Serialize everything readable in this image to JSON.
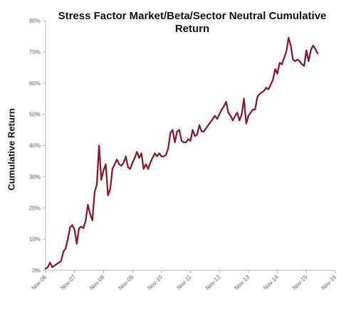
{
  "chart_data": {
    "type": "line",
    "title_lines": [
      "Stress Factor Market/Beta/Sector Neutral Cumulative",
      "Return"
    ],
    "ylabel": "Cumulative Return",
    "xlabel": "",
    "ylim": [
      0,
      80
    ],
    "yticks": [
      0,
      10,
      20,
      30,
      40,
      50,
      60,
      70,
      80
    ],
    "ytick_labels": [
      "0%",
      "10%",
      "20%",
      "30%",
      "40%",
      "50%",
      "60%",
      "70%",
      "80%"
    ],
    "xlim": [
      0,
      130
    ],
    "xticks": [
      0,
      13,
      26,
      39,
      52,
      65,
      78,
      91,
      104,
      117,
      130
    ],
    "xtick_labels": [
      "Nov-06",
      "Nov-07",
      "Nov-08",
      "Nov-09",
      "Nov-10",
      "Nov-11",
      "Nov-12",
      "Nov-13",
      "Nov-14",
      "Nov-15",
      "Nov-16"
    ],
    "grid": false,
    "legend": "none",
    "line_color": "#8B1A2B",
    "series": [
      {
        "values": [
          0.5,
          1.0,
          2.5,
          1.0,
          1.5,
          2.0,
          2.5,
          3.0,
          6.0,
          7.0,
          10.0,
          13.8,
          14.5,
          13.0,
          8.5,
          13.5,
          14.0,
          13.5,
          16.0,
          21.0,
          18.0,
          16.0,
          25.0,
          27.5,
          40.0,
          29.0,
          32.0,
          34.0,
          24.0,
          26.0,
          32.5,
          34.0,
          35.5,
          34.0,
          33.5,
          34.5,
          36.5,
          33.0,
          32.5,
          34.5,
          36.0,
          38.0,
          36.0,
          37.5,
          32.5,
          34.0,
          32.5,
          34.5,
          36.0,
          37.5,
          36.5,
          37.5,
          36.5,
          36.5,
          37.0,
          39.0,
          44.0,
          45.0,
          41.0,
          44.5,
          45.0,
          41.5,
          41.0,
          41.0,
          42.0,
          41.5,
          45.0,
          43.0,
          43.5,
          46.5,
          44.5,
          44.5,
          45.5,
          46.5,
          47.5,
          48.5,
          49.5,
          48.5,
          50.0,
          51.5,
          52.5,
          54.0,
          50.5,
          49.5,
          48.0,
          49.5,
          50.5,
          48.0,
          50.0,
          55.0,
          47.0,
          49.5,
          50.5,
          51.5,
          51.5,
          55.5,
          56.5,
          57.0,
          57.5,
          58.5,
          58.0,
          59.5,
          61.0,
          64.5,
          63.0,
          66.5,
          66.0,
          68.0,
          70.0,
          74.5,
          72.0,
          67.5,
          67.0,
          67.5,
          67.0,
          66.0,
          65.5,
          70.5,
          67.0,
          70.5,
          72.0,
          71.0,
          69.5
        ]
      }
    ]
  }
}
